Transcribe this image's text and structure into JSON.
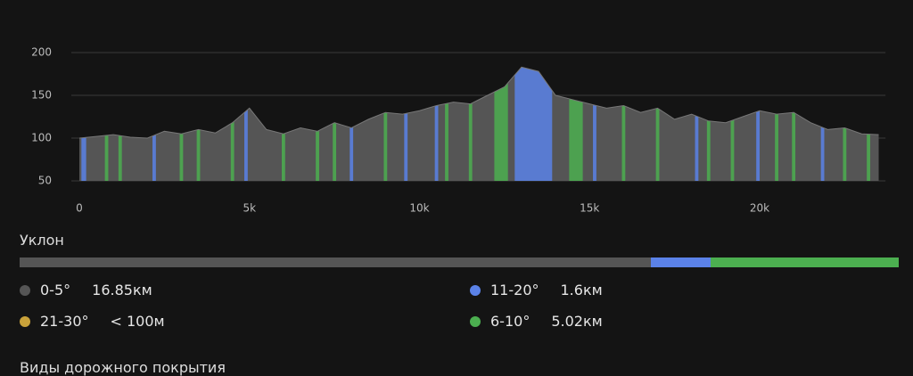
{
  "chart_data": {
    "type": "area",
    "color": "#555555",
    "x": [
      0,
      500,
      1000,
      1500,
      2000,
      2500,
      3000,
      3500,
      4000,
      4500,
      5000,
      5500,
      6000,
      6500,
      7000,
      7500,
      8000,
      8500,
      9000,
      9500,
      10000,
      10500,
      11000,
      11500,
      12000,
      12500,
      13000,
      13500,
      14000,
      14500,
      15000,
      15500,
      16000,
      16500,
      17000,
      17500,
      18000,
      18500,
      19000,
      19500,
      20000,
      20500,
      21000,
      21500,
      22000,
      22500,
      23000,
      23500
    ],
    "values": [
      100,
      102,
      104,
      101,
      100,
      108,
      105,
      110,
      106,
      118,
      135,
      110,
      105,
      112,
      108,
      118,
      112,
      122,
      130,
      128,
      132,
      138,
      142,
      140,
      150,
      160,
      183,
      178,
      150,
      145,
      140,
      135,
      138,
      130,
      135,
      122,
      128,
      120,
      118,
      125,
      132,
      128,
      130,
      118,
      110,
      112,
      105,
      104
    ],
    "xlim": [
      0,
      23700
    ],
    "ylim": [
      50,
      200
    ],
    "xticks": [
      0,
      {
        "value": 5000,
        "label": "5k"
      },
      {
        "value": 10000,
        "label": "10k"
      },
      {
        "value": 15000,
        "label": "15k"
      },
      {
        "value": 20000,
        "label": "20k"
      }
    ],
    "yticks": [
      50,
      100,
      150,
      200
    ],
    "grid": true,
    "bands": [
      {
        "color": "#5b82e8",
        "ranges": [
          [
            60,
            200
          ],
          [
            2150,
            2250
          ],
          [
            4850,
            4950
          ],
          [
            7950,
            8050
          ],
          [
            9550,
            9650
          ],
          [
            10450,
            10550
          ],
          [
            12800,
            13900
          ],
          [
            15100,
            15200
          ],
          [
            18100,
            18200
          ],
          [
            19900,
            20000
          ],
          [
            21800,
            21900
          ]
        ]
      },
      {
        "color": "#4caf50",
        "ranges": [
          [
            750,
            850
          ],
          [
            1150,
            1250
          ],
          [
            2950,
            3050
          ],
          [
            3450,
            3550
          ],
          [
            4450,
            4550
          ],
          [
            5950,
            6050
          ],
          [
            6950,
            7050
          ],
          [
            7450,
            7550
          ],
          [
            8950,
            9050
          ],
          [
            10750,
            10850
          ],
          [
            11450,
            11550
          ],
          [
            12200,
            12600
          ],
          [
            14400,
            14800
          ],
          [
            15950,
            16050
          ],
          [
            16950,
            17050
          ],
          [
            18450,
            18550
          ],
          [
            19150,
            19250
          ],
          [
            20450,
            20550
          ],
          [
            20950,
            21050
          ],
          [
            22450,
            22550
          ],
          [
            23150,
            23250
          ]
        ]
      }
    ]
  },
  "slope": {
    "title": "Уклон",
    "items": [
      {
        "label": "0-5°",
        "color": "#555555",
        "distance_km": 16.85,
        "distance_label": "16.85км"
      },
      {
        "label": "11-20°",
        "color": "#5b82e8",
        "distance_km": 1.6,
        "distance_label": "1.6км"
      },
      {
        "label": "21-30°",
        "color": "#c9a23a",
        "distance_label": "< 100м"
      },
      {
        "label": "6-10°",
        "color": "#4caf50",
        "distance_km": 5.02,
        "distance_label": "5.02км"
      }
    ]
  },
  "surface": {
    "title": "Виды дорожного покрытия"
  }
}
